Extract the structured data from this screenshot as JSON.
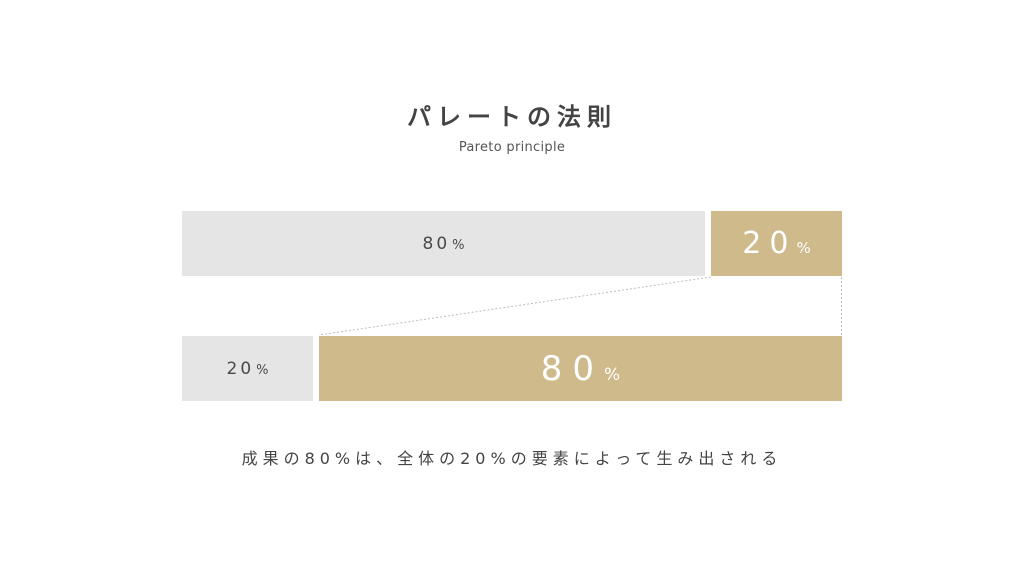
{
  "header": {
    "title": "パレートの法則",
    "subtitle": "Pareto principle"
  },
  "colors": {
    "gray": "#e5e5e5",
    "gold": "#cfba8b",
    "text": "#444444",
    "connector": "#bdbdbd"
  },
  "rows": [
    {
      "segments": [
        {
          "number": "80",
          "unit": "%",
          "color": "gray"
        },
        {
          "number": "20",
          "unit": "%",
          "color": "gold"
        }
      ]
    },
    {
      "segments": [
        {
          "number": "20",
          "unit": "%",
          "color": "gray"
        },
        {
          "number": "80",
          "unit": "%",
          "color": "gold"
        }
      ]
    }
  ],
  "caption": "成果の80%は、全体の20%の要素によって生み出される"
}
